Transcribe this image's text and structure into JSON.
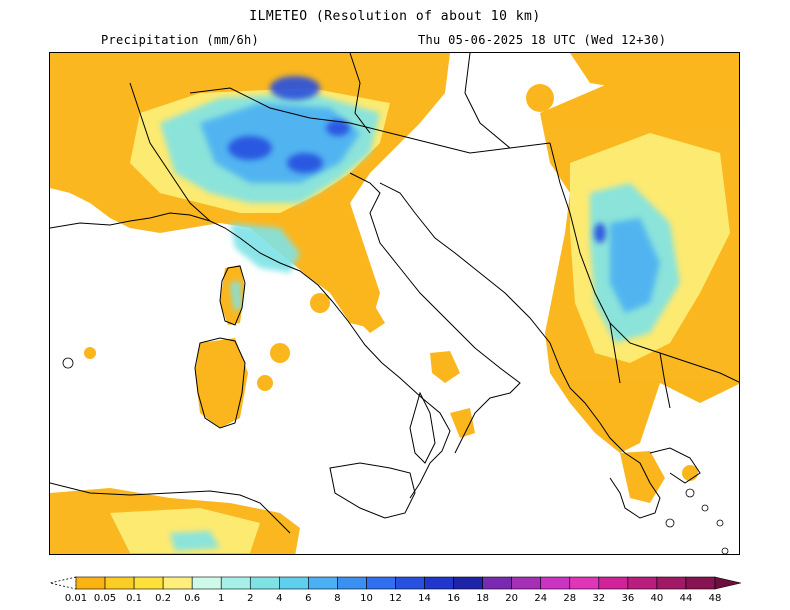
{
  "header": {
    "title": "ILMETEO (Resolution of about 10 km)",
    "variable": "Precipitation (mm/6h)",
    "valid_time": "Thu 05-06-2025 18 UTC (Wed 12+30)"
  },
  "legend": {
    "labels": [
      "0.01",
      "0.05",
      "0.1",
      "0.2",
      "0.6",
      "1",
      "2",
      "4",
      "6",
      "8",
      "10",
      "12",
      "14",
      "16",
      "18",
      "20",
      "24",
      "28",
      "32",
      "36",
      "40",
      "44",
      "48"
    ],
    "colors": [
      "#fbb313",
      "#fccc26",
      "#fde13a",
      "#fdef7a",
      "#cdfbea",
      "#a6f0e8",
      "#7fe3e6",
      "#5fcfee",
      "#4bb0f3",
      "#3a8ff0",
      "#2f6ff0",
      "#2850e0",
      "#2036cc",
      "#1e23a8",
      "#7a2ab0",
      "#a62fb8",
      "#cc33c2",
      "#e135b8",
      "#d0239a",
      "#b81d7f",
      "#a01866",
      "#861452",
      "#6a0f3e"
    ]
  },
  "map": {
    "palette": {
      "land_border": "#000000",
      "precip_light": "#fbb313",
      "precip_mid": "#fdef7a",
      "precip_cyan": "#7fe3e6",
      "precip_blue": "#4bb0f3",
      "precip_dark": "#2850e0"
    }
  }
}
